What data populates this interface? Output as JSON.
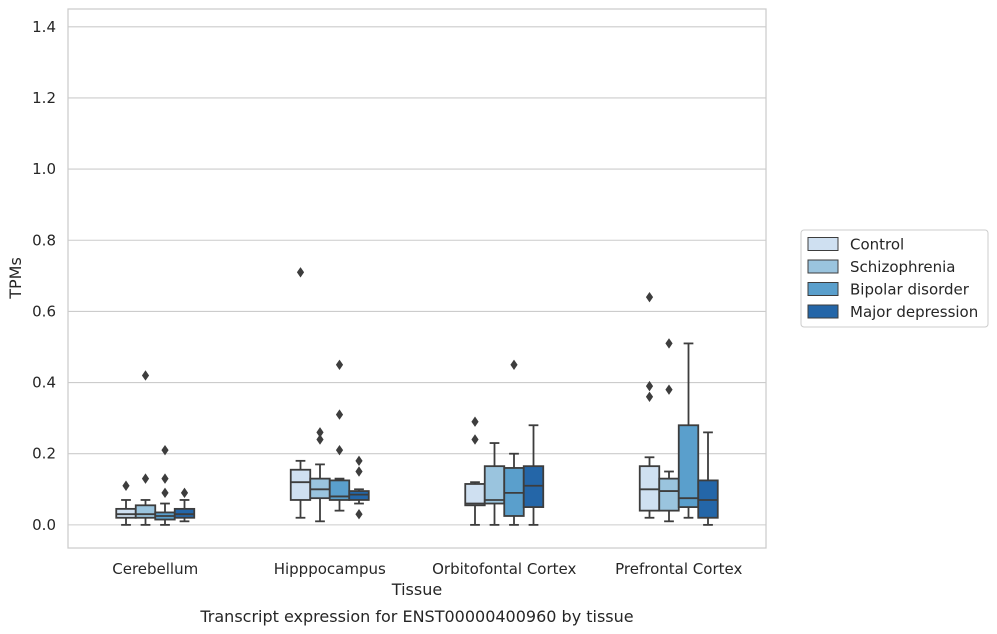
{
  "chart_data": {
    "type": "box",
    "title": "",
    "caption": "Transcript expression for ENST00000400960 by tissue",
    "xlabel": "Tissue",
    "ylabel": "TPMs",
    "ylim": [
      -0.065,
      1.45
    ],
    "yticks": [
      "0.0",
      "0.2",
      "0.4",
      "0.6",
      "0.8",
      "1.0",
      "1.2",
      "1.4"
    ],
    "grid": "horizontal",
    "legend_position": "right",
    "categories": [
      "Cerebellum",
      "Hipppocampus",
      "Orbitofontal Cortex",
      "Prefrontal Cortex"
    ],
    "series": [
      {
        "name": "Control",
        "color": "#cfe0f1",
        "boxes": [
          {
            "whislo": 0.0,
            "q1": 0.02,
            "med": 0.03,
            "q3": 0.045,
            "whishi": 0.07,
            "fliers": [
              0.11
            ]
          },
          {
            "whislo": 0.02,
            "q1": 0.07,
            "med": 0.12,
            "q3": 0.155,
            "whishi": 0.18,
            "fliers": [
              0.71
            ]
          },
          {
            "whislo": 0.0,
            "q1": 0.055,
            "med": 0.06,
            "q3": 0.115,
            "whishi": 0.12,
            "fliers": [
              0.24,
              0.29
            ]
          },
          {
            "whislo": 0.02,
            "q1": 0.04,
            "med": 0.1,
            "q3": 0.165,
            "whishi": 0.19,
            "fliers": [
              0.36,
              0.39,
              0.64
            ]
          }
        ]
      },
      {
        "name": "Schizophrenia",
        "color": "#9ac4de",
        "boxes": [
          {
            "whislo": 0.0,
            "q1": 0.02,
            "med": 0.03,
            "q3": 0.055,
            "whishi": 0.07,
            "fliers": [
              0.13,
              0.42
            ]
          },
          {
            "whislo": 0.01,
            "q1": 0.075,
            "med": 0.1,
            "q3": 0.13,
            "whishi": 0.17,
            "fliers": [
              0.24,
              0.26
            ]
          },
          {
            "whislo": 0.0,
            "q1": 0.06,
            "med": 0.07,
            "q3": 0.165,
            "whishi": 0.23,
            "fliers": []
          },
          {
            "whislo": 0.01,
            "q1": 0.04,
            "med": 0.095,
            "q3": 0.13,
            "whishi": 0.15,
            "fliers": [
              0.38,
              0.51
            ]
          }
        ]
      },
      {
        "name": "Bipolar disorder",
        "color": "#5a9fcc",
        "boxes": [
          {
            "whislo": 0.0,
            "q1": 0.015,
            "med": 0.025,
            "q3": 0.035,
            "whishi": 0.06,
            "fliers": [
              0.09,
              0.13,
              0.21
            ]
          },
          {
            "whislo": 0.04,
            "q1": 0.07,
            "med": 0.08,
            "q3": 0.125,
            "whishi": 0.13,
            "fliers": [
              0.21,
              0.31,
              0.45
            ]
          },
          {
            "whislo": 0.0,
            "q1": 0.025,
            "med": 0.09,
            "q3": 0.16,
            "whishi": 0.2,
            "fliers": [
              0.45
            ]
          },
          {
            "whislo": 0.02,
            "q1": 0.05,
            "med": 0.075,
            "q3": 0.28,
            "whishi": 0.51,
            "fliers": []
          }
        ]
      },
      {
        "name": "Major depression",
        "color": "#2466a8",
        "boxes": [
          {
            "whislo": 0.01,
            "q1": 0.02,
            "med": 0.03,
            "q3": 0.045,
            "whishi": 0.07,
            "fliers": [
              0.09
            ]
          },
          {
            "whislo": 0.06,
            "q1": 0.07,
            "med": 0.085,
            "q3": 0.095,
            "whishi": 0.1,
            "fliers": [
              0.03,
              0.15,
              0.18
            ]
          },
          {
            "whislo": 0.0,
            "q1": 0.05,
            "med": 0.11,
            "q3": 0.165,
            "whishi": 0.28,
            "fliers": []
          },
          {
            "whislo": 0.0,
            "q1": 0.02,
            "med": 0.07,
            "q3": 0.125,
            "whishi": 0.26,
            "fliers": []
          }
        ]
      }
    ],
    "colors": {
      "line": "#3d3d3d",
      "grid": "#cccccc",
      "frame": "#cccccc",
      "flier": "#3d3d3d"
    }
  }
}
